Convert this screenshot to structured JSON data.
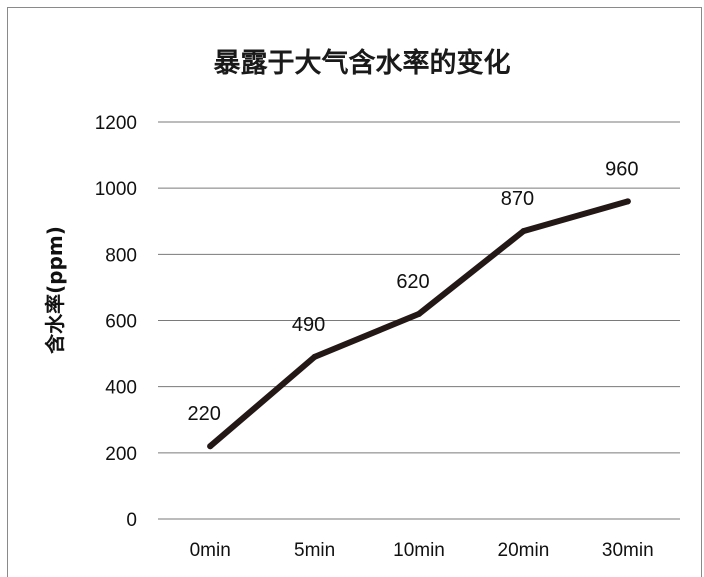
{
  "chart_data": {
    "type": "line",
    "title": "暴露于大气含水率的变化",
    "xlabel": "",
    "ylabel": "含水率(ppm)",
    "categories": [
      "0min",
      "5min",
      "10min",
      "20min",
      "30min"
    ],
    "series": [
      {
        "values": [
          220,
          490,
          620,
          870,
          960
        ]
      }
    ],
    "data_labels": [
      "220",
      "490",
      "620",
      "870",
      "960"
    ],
    "ylim": [
      0,
      1200
    ],
    "yticks": [
      "0",
      "200",
      "400",
      "600",
      "800",
      "1000",
      "1200"
    ],
    "grid": true,
    "legend": "none",
    "line_color": "#231815"
  }
}
